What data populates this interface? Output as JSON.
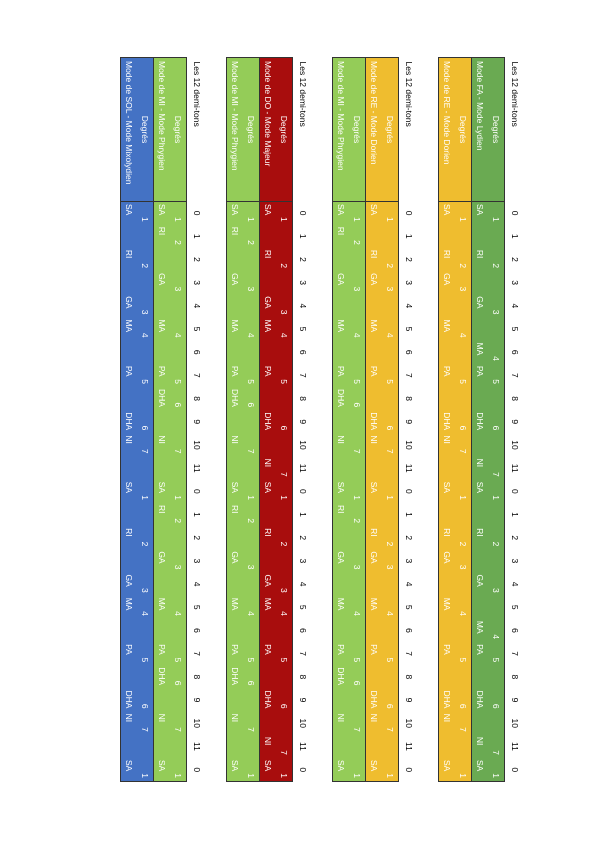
{
  "groups": [
    {
      "header": "Les 12 demi-tons",
      "semitones": [
        0,
        1,
        2,
        3,
        4,
        5,
        6,
        7,
        8,
        9,
        10,
        11,
        0,
        1,
        2,
        3,
        4,
        5,
        6,
        7,
        8,
        9,
        10,
        11,
        0
      ],
      "modes": [
        {
          "color": "#6aaa52",
          "degrees_label": "Degrés",
          "name": "Mode FA - Mode Lydien",
          "degrees": [
            1,
            null,
            2,
            null,
            3,
            null,
            4,
            5,
            null,
            6,
            null,
            7,
            1,
            null,
            2,
            null,
            3,
            null,
            4,
            5,
            null,
            6,
            null,
            7,
            1
          ],
          "notes": [
            "SA",
            null,
            "RI",
            null,
            "GA",
            null,
            "MA",
            "PA",
            null,
            "DHA",
            null,
            "NI",
            "SA",
            null,
            "RI",
            null,
            "GA",
            null,
            "MA",
            "PA",
            null,
            "DHA",
            null,
            "NI",
            "SA"
          ]
        },
        {
          "color": "#efbd2f",
          "degrees_label": "Degrés",
          "name": "Mode de RE - Mode Dorien",
          "degrees": [
            1,
            null,
            2,
            3,
            null,
            4,
            null,
            5,
            null,
            6,
            7,
            null,
            1,
            null,
            2,
            3,
            null,
            4,
            null,
            5,
            null,
            6,
            7,
            null,
            1
          ],
          "notes": [
            "SA",
            null,
            "RI",
            "GA",
            null,
            "MA",
            null,
            "PA",
            null,
            "DHA",
            "NI",
            null,
            "SA",
            null,
            "RI",
            "GA",
            null,
            "MA",
            null,
            "PA",
            null,
            "DHA",
            "NI",
            null,
            "SA"
          ]
        }
      ]
    },
    {
      "header": "Les 12 demi-tons",
      "semitones": [
        0,
        1,
        2,
        3,
        4,
        5,
        6,
        7,
        8,
        9,
        10,
        11,
        0,
        1,
        2,
        3,
        4,
        5,
        6,
        7,
        8,
        9,
        10,
        11,
        0
      ],
      "modes": [
        {
          "color": "#efbd2f",
          "degrees_label": "Degrés",
          "name": "Mode de RE - Mode Dorien",
          "degrees": [
            1,
            null,
            2,
            3,
            null,
            4,
            null,
            5,
            null,
            6,
            7,
            null,
            1,
            null,
            2,
            3,
            null,
            4,
            null,
            5,
            null,
            6,
            7,
            null,
            1
          ],
          "notes": [
            "SA",
            null,
            "RI",
            "GA",
            null,
            "MA",
            null,
            "PA",
            null,
            "DHA",
            "NI",
            null,
            "SA",
            null,
            "RI",
            "GA",
            null,
            "MA",
            null,
            "PA",
            null,
            "DHA",
            "NI",
            null,
            "SA"
          ]
        },
        {
          "color": "#94cc58",
          "degrees_label": "Degrés",
          "name": "Mode de MI - Mode Phrygien",
          "degrees": [
            1,
            2,
            null,
            3,
            null,
            4,
            null,
            5,
            6,
            null,
            7,
            null,
            1,
            2,
            null,
            3,
            null,
            4,
            null,
            5,
            6,
            null,
            7,
            null,
            1
          ],
          "notes": [
            "SA",
            "RI",
            null,
            "GA",
            null,
            "MA",
            null,
            "PA",
            "DHA",
            null,
            "NI",
            null,
            "SA",
            "RI",
            null,
            "GA",
            null,
            "MA",
            null,
            "PA",
            "DHA",
            null,
            "NI",
            null,
            "SA"
          ]
        }
      ]
    },
    {
      "header": "Les 12 demi-tons",
      "semitones": [
        0,
        1,
        2,
        3,
        4,
        5,
        6,
        7,
        8,
        9,
        10,
        11,
        0,
        1,
        2,
        3,
        4,
        5,
        6,
        7,
        8,
        9,
        10,
        11,
        0
      ],
      "modes": [
        {
          "color": "#a80d0d",
          "degrees_label": "Degrés",
          "name": "Mode de DO - Mode Majeur",
          "degrees": [
            1,
            null,
            2,
            null,
            3,
            4,
            null,
            5,
            null,
            6,
            null,
            7,
            1,
            null,
            2,
            null,
            3,
            4,
            null,
            5,
            null,
            6,
            null,
            7,
            1
          ],
          "notes": [
            "SA",
            null,
            "RI",
            null,
            "GA",
            "MA",
            null,
            "PA",
            null,
            "DHA",
            null,
            "NI",
            "SA",
            null,
            "RI",
            null,
            "GA",
            "MA",
            null,
            "PA",
            null,
            "DHA",
            null,
            "NI",
            "SA"
          ]
        },
        {
          "color": "#94cc58",
          "degrees_label": "Degrés",
          "name": "Mode de MI - Mode Phrygien",
          "degrees": [
            1,
            2,
            null,
            3,
            null,
            4,
            null,
            5,
            6,
            null,
            7,
            null,
            1,
            2,
            null,
            3,
            null,
            4,
            null,
            5,
            6,
            null,
            7,
            null,
            1
          ],
          "notes": [
            "SA",
            "RI",
            null,
            "GA",
            null,
            "MA",
            null,
            "PA",
            "DHA",
            null,
            "NI",
            null,
            "SA",
            "RI",
            null,
            "GA",
            null,
            "MA",
            null,
            "PA",
            "DHA",
            null,
            "NI",
            null,
            "SA"
          ]
        }
      ]
    },
    {
      "header": "Les 12 demi-tons",
      "semitones": [
        0,
        1,
        2,
        3,
        4,
        5,
        6,
        7,
        8,
        9,
        10,
        11,
        0,
        1,
        2,
        3,
        4,
        5,
        6,
        7,
        8,
        9,
        10,
        11,
        0
      ],
      "modes": [
        {
          "color": "#94cc58",
          "degrees_label": "Degrés",
          "name": "Mode de MI - Mode Phrygien",
          "degrees": [
            1,
            2,
            null,
            3,
            null,
            4,
            null,
            5,
            6,
            null,
            7,
            null,
            1,
            2,
            null,
            3,
            null,
            4,
            null,
            5,
            6,
            null,
            7,
            null,
            1
          ],
          "notes": [
            "SA",
            "RI",
            null,
            "GA",
            null,
            "MA",
            null,
            "PA",
            "DHA",
            null,
            "NI",
            null,
            "SA",
            "RI",
            null,
            "GA",
            null,
            "MA",
            null,
            "PA",
            "DHA",
            null,
            "NI",
            null,
            "SA"
          ]
        },
        {
          "color": "#4472c4",
          "degrees_label": "Degrés",
          "name": "Mode de SOL - Mode Mixolydien",
          "degrees": [
            1,
            null,
            2,
            null,
            3,
            4,
            null,
            5,
            null,
            6,
            7,
            null,
            1,
            null,
            2,
            null,
            3,
            4,
            null,
            5,
            null,
            6,
            7,
            null,
            1
          ],
          "notes": [
            "SA",
            null,
            "RI",
            null,
            "GA",
            "MA",
            null,
            "PA",
            null,
            "DHA",
            "NI",
            null,
            "SA",
            null,
            "RI",
            null,
            "GA",
            "MA",
            null,
            "PA",
            null,
            "DHA",
            "NI",
            null,
            "SA"
          ]
        }
      ]
    }
  ]
}
